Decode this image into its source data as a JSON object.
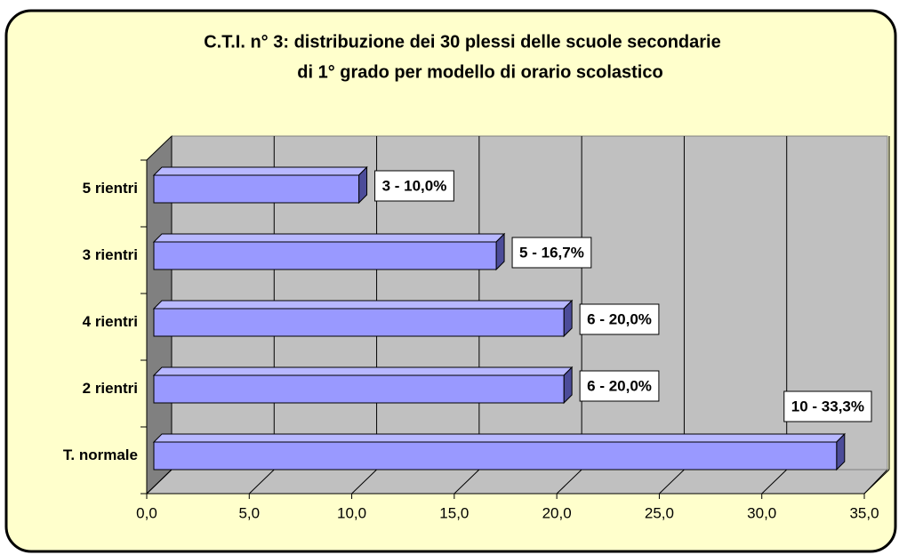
{
  "chart_data": {
    "type": "bar3d_horizontal",
    "title": [
      "C.T.I. n° 3: distribuzione dei 30 plessi delle scuole secondarie",
      "di  1° grado per modello di orario scolastico"
    ],
    "categories": [
      "T. normale",
      "2 rientri",
      "4 rientri",
      "3 rientri",
      "5 rientri"
    ],
    "values": [
      33.3,
      20.0,
      20.0,
      16.7,
      10.0
    ],
    "value_labels": [
      "10 - 33,3%",
      "6 - 20,0%",
      "6 - 20,0%",
      "5 - 16,7%",
      "3 - 10,0%"
    ],
    "color": "#9999ff",
    "xlim": [
      0,
      35
    ],
    "xticks": [
      {
        "value": 0,
        "label": "0,0"
      },
      {
        "value": 5,
        "label": "5,0"
      },
      {
        "value": 10,
        "label": "10,0"
      },
      {
        "value": 15,
        "label": "15,0"
      },
      {
        "value": 20,
        "label": "20,0"
      },
      {
        "value": 25,
        "label": "25,0"
      },
      {
        "value": 30,
        "label": "30,0"
      },
      {
        "value": 35,
        "label": "35,0"
      }
    ],
    "grid": true
  }
}
